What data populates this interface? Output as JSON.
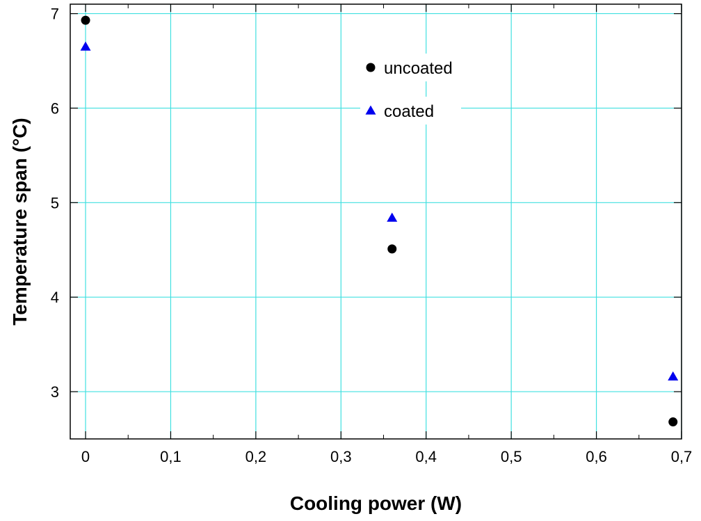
{
  "chart_data": {
    "type": "scatter",
    "title": "",
    "xlabel": "Cooling power (W)",
    "ylabel": "Temperature span (°C)",
    "xlim": [
      -0.018,
      0.7
    ],
    "ylim": [
      2.5,
      7.1
    ],
    "x_ticks": [
      {
        "value": 0,
        "label": "0"
      },
      {
        "value": 0.1,
        "label": "0,1"
      },
      {
        "value": 0.2,
        "label": "0,2"
      },
      {
        "value": 0.3,
        "label": "0,3"
      },
      {
        "value": 0.4,
        "label": "0,4"
      },
      {
        "value": 0.5,
        "label": "0,5"
      },
      {
        "value": 0.6,
        "label": "0,6"
      },
      {
        "value": 0.7,
        "label": "0,7"
      }
    ],
    "y_ticks": [
      {
        "value": 3,
        "label": "3"
      },
      {
        "value": 4,
        "label": "4"
      },
      {
        "value": 5,
        "label": "5"
      },
      {
        "value": 6,
        "label": "6"
      },
      {
        "value": 7,
        "label": "7"
      }
    ],
    "grid": true,
    "grid_color": "#40e0e0",
    "legend_position": "top-center",
    "series": [
      {
        "name": "uncoated",
        "marker": "circle",
        "color": "#000000",
        "points": [
          {
            "x": 0,
            "y": 6.93
          },
          {
            "x": 0.36,
            "y": 4.51
          },
          {
            "x": 0.69,
            "y": 2.68
          }
        ]
      },
      {
        "name": "coated",
        "marker": "triangle",
        "color": "#0000ee",
        "points": [
          {
            "x": 0,
            "y": 6.65
          },
          {
            "x": 0.36,
            "y": 4.84
          },
          {
            "x": 0.69,
            "y": 3.16
          }
        ]
      }
    ]
  }
}
